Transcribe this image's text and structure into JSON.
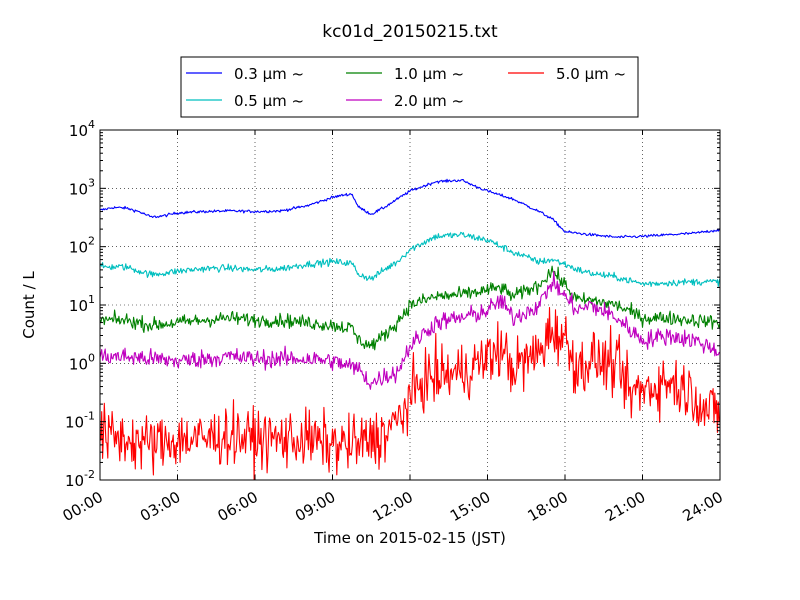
{
  "chart_data": {
    "type": "line",
    "title": "kc01d_20150215.txt",
    "xlabel": "Time on 2015-02-15 (JST)",
    "ylabel": "Count / L",
    "xlim": [
      "00:00",
      "24:00"
    ],
    "ylim": [
      0.01,
      10000
    ],
    "yscale": "log",
    "grid": true,
    "legend_position": "top",
    "x_ticks": [
      "00:00",
      "03:00",
      "06:00",
      "09:00",
      "12:00",
      "15:00",
      "18:00",
      "21:00",
      "24:00"
    ],
    "y_ticks": [
      {
        "base": "10",
        "exp": "-2"
      },
      {
        "base": "10",
        "exp": "-1"
      },
      {
        "base": "10",
        "exp": "0"
      },
      {
        "base": "10",
        "exp": "1"
      },
      {
        "base": "10",
        "exp": "2"
      },
      {
        "base": "10",
        "exp": "3"
      },
      {
        "base": "10",
        "exp": "4"
      }
    ],
    "series": [
      {
        "name": "0.3 μm ~",
        "color": "#0000ff",
        "noise": 0.012,
        "x": [
          "00:00",
          "00:30",
          "01:00",
          "01:30",
          "02:00",
          "02:30",
          "03:00",
          "04:00",
          "05:00",
          "06:00",
          "07:00",
          "08:00",
          "09:00",
          "09:30",
          "09:45",
          "10:00",
          "10:30",
          "11:00",
          "11:30",
          "12:00",
          "13:00",
          "14:00",
          "14:30",
          "15:00",
          "16:00",
          "17:00",
          "17:30",
          "18:00",
          "19:00",
          "20:00",
          "21:00",
          "22:00",
          "23:00",
          "24:00"
        ],
        "y": [
          420,
          470,
          460,
          400,
          320,
          340,
          380,
          400,
          410,
          400,
          410,
          500,
          700,
          780,
          800,
          480,
          360,
          470,
          650,
          900,
          1300,
          1380,
          1100,
          900,
          650,
          400,
          300,
          180,
          160,
          145,
          150,
          160,
          170,
          195
        ]
      },
      {
        "name": "0.5 μm ~",
        "color": "#00bfbf",
        "noise": 0.03,
        "x": [
          "00:00",
          "01:00",
          "02:00",
          "03:00",
          "04:00",
          "05:00",
          "06:00",
          "07:00",
          "08:00",
          "09:00",
          "09:45",
          "10:00",
          "10:30",
          "11:00",
          "11:30",
          "12:00",
          "13:00",
          "14:00",
          "15:00",
          "16:00",
          "17:00",
          "17:30",
          "18:00",
          "18:30",
          "19:00",
          "20:00",
          "21:00",
          "22:00",
          "23:00",
          "24:00"
        ],
        "y": [
          45,
          45,
          33,
          38,
          42,
          43,
          40,
          42,
          50,
          55,
          52,
          34,
          28,
          40,
          55,
          90,
          150,
          160,
          130,
          80,
          55,
          60,
          50,
          40,
          35,
          30,
          23,
          24,
          25,
          25
        ]
      },
      {
        "name": "1.0 μm ~",
        "color": "#008000",
        "noise": 0.06,
        "x": [
          "00:00",
          "01:00",
          "02:00",
          "03:00",
          "04:00",
          "05:00",
          "06:00",
          "07:00",
          "08:00",
          "09:00",
          "09:45",
          "10:00",
          "10:30",
          "11:00",
          "11:30",
          "12:00",
          "13:00",
          "14:00",
          "15:00",
          "15:30",
          "16:00",
          "17:00",
          "17:30",
          "18:00",
          "18:30",
          "19:00",
          "20:00",
          "21:00",
          "22:00",
          "23:00",
          "24:00"
        ],
        "y": [
          5.5,
          5.5,
          4.5,
          5,
          5.5,
          6,
          5.5,
          5.5,
          5,
          4.5,
          4,
          2.5,
          2,
          3,
          5,
          10,
          14,
          15,
          18,
          20,
          14,
          22,
          40,
          22,
          12,
          12,
          10,
          6,
          6,
          5.5,
          5
        ]
      },
      {
        "name": "2.0 μm ~",
        "color": "#bf00bf",
        "noise": 0.08,
        "x": [
          "00:00",
          "01:00",
          "02:00",
          "03:00",
          "04:00",
          "05:00",
          "06:00",
          "07:00",
          "08:00",
          "09:00",
          "10:00",
          "10:30",
          "11:00",
          "11:30",
          "12:00",
          "13:00",
          "14:00",
          "15:00",
          "15:30",
          "16:00",
          "17:00",
          "17:30",
          "18:00",
          "18:30",
          "19:00",
          "20:00",
          "21:00",
          "22:00",
          "23:00",
          "24:00"
        ],
        "y": [
          1.3,
          1.3,
          1.2,
          1.1,
          1.2,
          1.3,
          1.2,
          1.2,
          1.2,
          1.1,
          0.8,
          0.45,
          0.6,
          0.7,
          2,
          5,
          6,
          8,
          12,
          6,
          10,
          25,
          14,
          8,
          10,
          6,
          2.5,
          3,
          2.5,
          1.6
        ]
      },
      {
        "name": "5.0 μm ~",
        "color": "#ff0000",
        "noise": 0.25,
        "x": [
          "00:00",
          "01:00",
          "02:00",
          "03:00",
          "04:00",
          "05:00",
          "06:00",
          "07:00",
          "08:00",
          "09:00",
          "10:00",
          "11:00",
          "11:30",
          "12:00",
          "12:30",
          "13:00",
          "14:00",
          "15:00",
          "15:30",
          "16:00",
          "17:00",
          "17:30",
          "18:00",
          "18:30",
          "19:00",
          "20:00",
          "20:30",
          "21:00",
          "22:00",
          "23:00",
          "23:30",
          "24:00"
        ],
        "y": [
          0.06,
          0.05,
          0.04,
          0.05,
          0.05,
          0.06,
          0.05,
          0.05,
          0.05,
          0.04,
          0.04,
          0.06,
          0.1,
          0.25,
          0.5,
          0.6,
          0.7,
          1.2,
          1.8,
          0.8,
          1.5,
          4,
          2.5,
          0.8,
          1.2,
          0.9,
          0.3,
          0.35,
          0.5,
          0.3,
          0.15,
          0.15
        ]
      }
    ]
  }
}
